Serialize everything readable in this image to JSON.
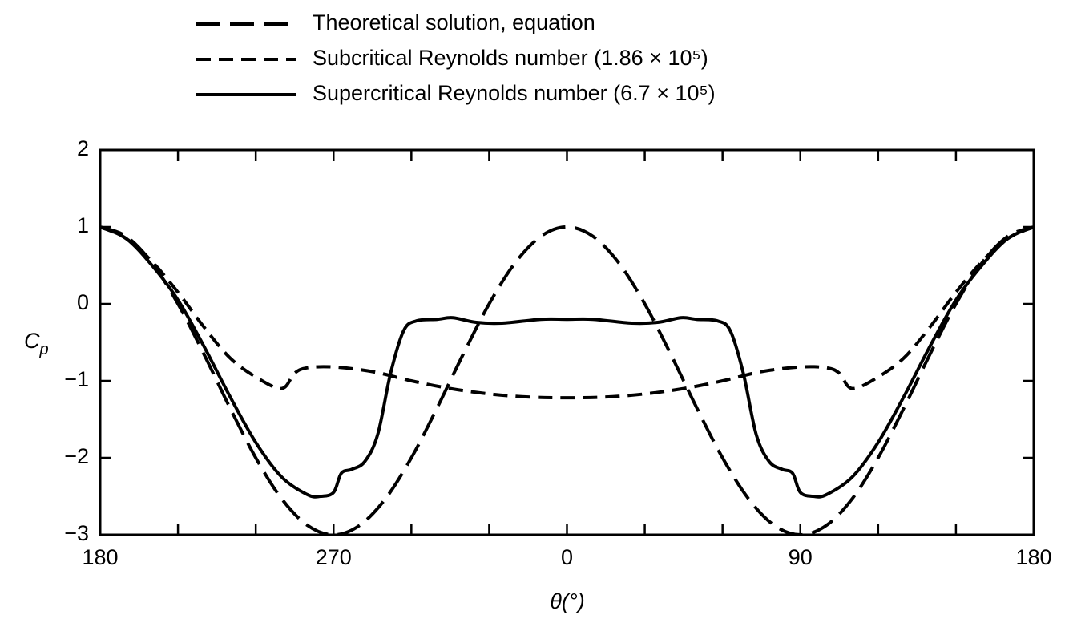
{
  "chart_data": {
    "type": "line",
    "xlabel": "θ(°)",
    "ylabel": {
      "symbol": "C",
      "subscript": "p"
    },
    "xlim": [
      -180,
      180
    ],
    "xticks": [
      {
        "value": -180,
        "label": "180"
      },
      {
        "value": -90,
        "label": "270"
      },
      0,
      90,
      180
    ],
    "xminorticks": [
      -150,
      -120,
      -60,
      -30,
      30,
      60,
      120,
      150
    ],
    "ylim": [
      -3,
      2
    ],
    "yticks": [
      -3,
      -2,
      -1,
      0,
      1,
      2
    ],
    "yticklabels": [
      "−3",
      "−2",
      "−1",
      "0",
      "1",
      "2"
    ],
    "series": [
      {
        "name": "Theoretical solution, equation",
        "color": "#000000",
        "dash": "30,12",
        "x": [
          -180,
          -170,
          -160,
          -150,
          -140,
          -130,
          -120,
          -110,
          -100,
          -90,
          -80,
          -70,
          -60,
          -50,
          -40,
          -30,
          -20,
          -10,
          0,
          10,
          20,
          30,
          40,
          50,
          60,
          70,
          80,
          90,
          100,
          110,
          120,
          130,
          140,
          150,
          160,
          170,
          180
        ],
        "values": [
          1,
          0.879,
          0.532,
          0,
          -0.653,
          -1.347,
          -2,
          -2.532,
          -2.879,
          -3,
          -2.879,
          -2.532,
          -2,
          -1.347,
          -0.653,
          0,
          0.532,
          0.879,
          1,
          0.879,
          0.532,
          0,
          -0.653,
          -1.347,
          -2,
          -2.532,
          -2.879,
          -3,
          -2.879,
          -2.532,
          -2,
          -1.347,
          -0.653,
          0,
          0.532,
          0.879,
          1
        ]
      },
      {
        "name": "Subcritical Reynolds number (1.86 × 10⁵)",
        "color": "#000000",
        "dash": "18,10",
        "x": [
          -180,
          -170,
          -160,
          -150,
          -140,
          -130,
          -120,
          -110,
          -105,
          -100,
          -90,
          -75,
          -60,
          -45,
          -30,
          -15,
          0,
          15,
          30,
          45,
          60,
          75,
          90,
          100,
          105,
          110,
          120,
          130,
          140,
          150,
          160,
          170,
          180
        ],
        "values": [
          1,
          0.85,
          0.55,
          0.15,
          -0.3,
          -0.7,
          -0.95,
          -1.1,
          -0.9,
          -0.83,
          -0.82,
          -0.88,
          -1.0,
          -1.1,
          -1.17,
          -1.21,
          -1.22,
          -1.21,
          -1.17,
          -1.1,
          -1.0,
          -0.88,
          -0.82,
          -0.83,
          -0.9,
          -1.1,
          -0.95,
          -0.7,
          -0.3,
          0.15,
          0.55,
          0.85,
          1
        ]
      },
      {
        "name": "Supercritical Reynolds number (6.7 × 10⁵)",
        "color": "#000000",
        "dash": "none",
        "x": [
          -180,
          -170,
          -160,
          -150,
          -140,
          -130,
          -120,
          -110,
          -100,
          -95,
          -90,
          -87,
          -83,
          -78,
          -73,
          -68,
          -63,
          -58,
          -50,
          -44,
          -35,
          -25,
          -10,
          0,
          10,
          25,
          35,
          44,
          50,
          58,
          63,
          68,
          73,
          78,
          83,
          87,
          90,
          95,
          100,
          110,
          120,
          130,
          140,
          150,
          160,
          170,
          180
        ],
        "values": [
          1,
          0.85,
          0.5,
          0.05,
          -0.55,
          -1.2,
          -1.8,
          -2.25,
          -2.48,
          -2.5,
          -2.45,
          -2.2,
          -2.15,
          -2.05,
          -1.7,
          -0.9,
          -0.35,
          -0.22,
          -0.2,
          -0.18,
          -0.24,
          -0.25,
          -0.2,
          -0.2,
          -0.2,
          -0.25,
          -0.24,
          -0.18,
          -0.2,
          -0.22,
          -0.35,
          -0.9,
          -1.7,
          -2.05,
          -2.15,
          -2.2,
          -2.45,
          -2.5,
          -2.48,
          -2.25,
          -1.8,
          -1.2,
          -0.55,
          0.05,
          0.5,
          0.85,
          1
        ]
      }
    ]
  }
}
